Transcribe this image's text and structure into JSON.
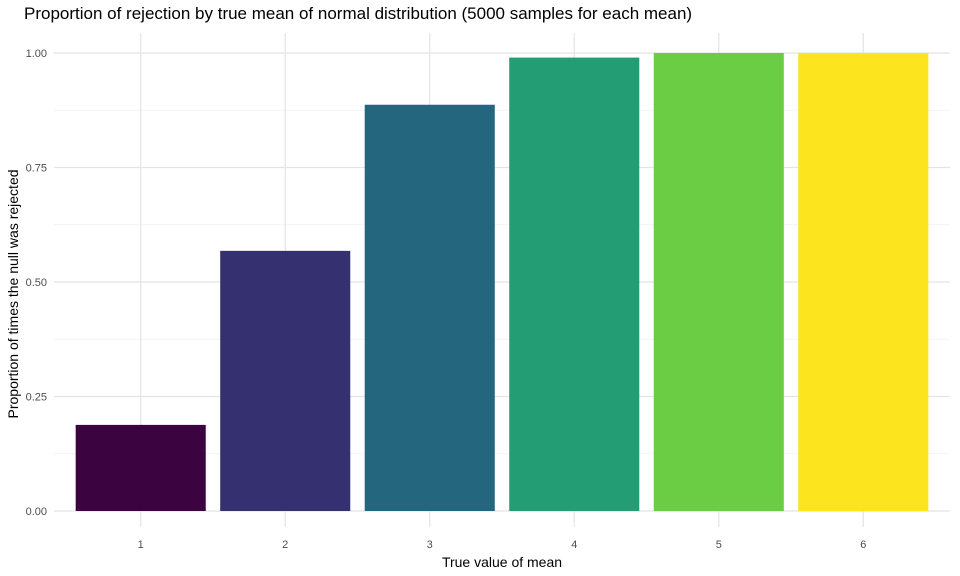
{
  "chart_data": {
    "type": "bar",
    "title": "Proportion of rejection by true mean of normal distribution (5000 samples for each mean)",
    "xlabel": "True value of mean",
    "ylabel": "Proportion of times the null was rejected",
    "categories": [
      "1",
      "2",
      "3",
      "4",
      "5",
      "6"
    ],
    "values": [
      0.188,
      0.568,
      0.887,
      0.99,
      1.0,
      1.0
    ],
    "colors": [
      "#440154",
      "#443A83",
      "#31688E",
      "#21908C",
      "#35B779",
      "#FDE725"
    ],
    "bar_colors_rendered": [
      "#3b0340",
      "#35306f",
      "#23667d",
      "#229d74",
      "#6bcd44",
      "#fce41f"
    ],
    "ylim": [
      0,
      1.045
    ],
    "y_ticks": [
      0,
      0.25,
      0.5,
      0.75,
      1.0
    ],
    "y_tick_labels": [
      "0.00",
      "0.25",
      "0.50",
      "0.75",
      "1.00"
    ],
    "grid": true,
    "legend": "none"
  }
}
